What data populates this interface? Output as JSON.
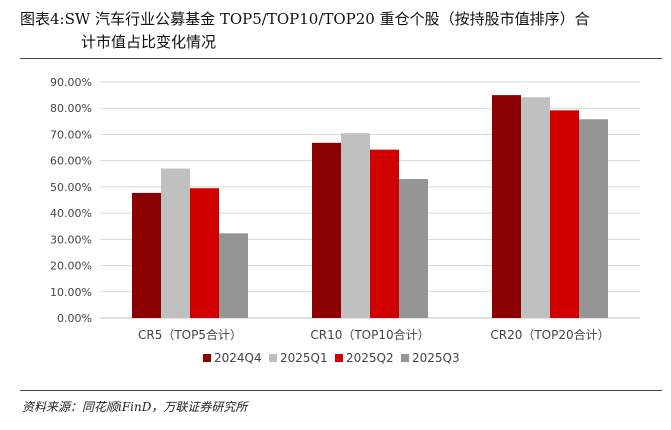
{
  "figure": {
    "number_label": "图表4:",
    "title_line1": "SW 汽车行业公募基金 TOP5/TOP10/TOP20 重仓个股（按持股市值排序）合",
    "title_line2": "计市值占比变化情况",
    "source": "资料来源：同花顺iFinD，万联证券研究所"
  },
  "chart_data": {
    "type": "bar",
    "title": "",
    "xlabel": "",
    "ylabel": "",
    "categories": [
      "CR5（TOP5合计）",
      "CR10（TOP10合计）",
      "CR20（TOP20合计）"
    ],
    "series": [
      {
        "name": "2024Q4",
        "color": "#8b0000",
        "values": [
          47.7,
          66.8,
          85.0
        ]
      },
      {
        "name": "2025Q1",
        "color": "#c0c0c0",
        "values": [
          57.0,
          70.5,
          84.2
        ]
      },
      {
        "name": "2025Q2",
        "color": "#d10000",
        "values": [
          49.5,
          64.2,
          79.2
        ]
      },
      {
        "name": "2025Q3",
        "color": "#959595",
        "values": [
          32.3,
          53.0,
          75.8
        ]
      }
    ],
    "ylim": [
      0,
      90
    ],
    "yticks": [
      "0.00%",
      "10.00%",
      "20.00%",
      "30.00%",
      "40.00%",
      "50.00%",
      "60.00%",
      "70.00%",
      "80.00%",
      "90.00%"
    ],
    "grid": true,
    "legend_position": "bottom"
  }
}
